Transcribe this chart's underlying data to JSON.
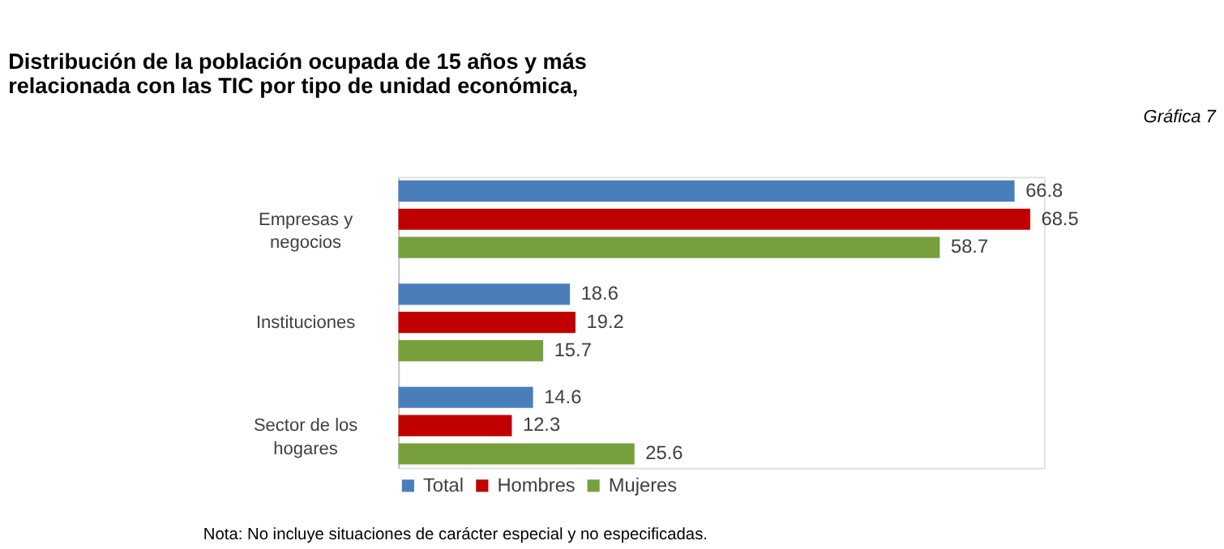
{
  "chart_data": {
    "type": "bar",
    "orientation": "horizontal",
    "title": "Distribución de la población ocupada de 15 años y más\nrelacionada con las TIC por tipo de unidad económica,",
    "categories": [
      "Empresas y\nnegocios",
      "Instituciones",
      "Sector de los\nhogares"
    ],
    "series": [
      {
        "name": "Total",
        "color": "#4a7ebb",
        "values": [
          66.8,
          18.6,
          14.6
        ]
      },
      {
        "name": "Hombres",
        "color": "#c00000",
        "values": [
          68.5,
          19.2,
          12.3
        ]
      },
      {
        "name": "Mujeres",
        "color": "#77a03d",
        "values": [
          58.7,
          15.7,
          25.6
        ]
      }
    ],
    "data_labels": true,
    "legend": "bottom",
    "grid": false,
    "tick_labels": "y",
    "annotations": [
      "Gráfica 7",
      "Nota:     No incluye situaciones de carácter especial y no especificadas."
    ]
  }
}
